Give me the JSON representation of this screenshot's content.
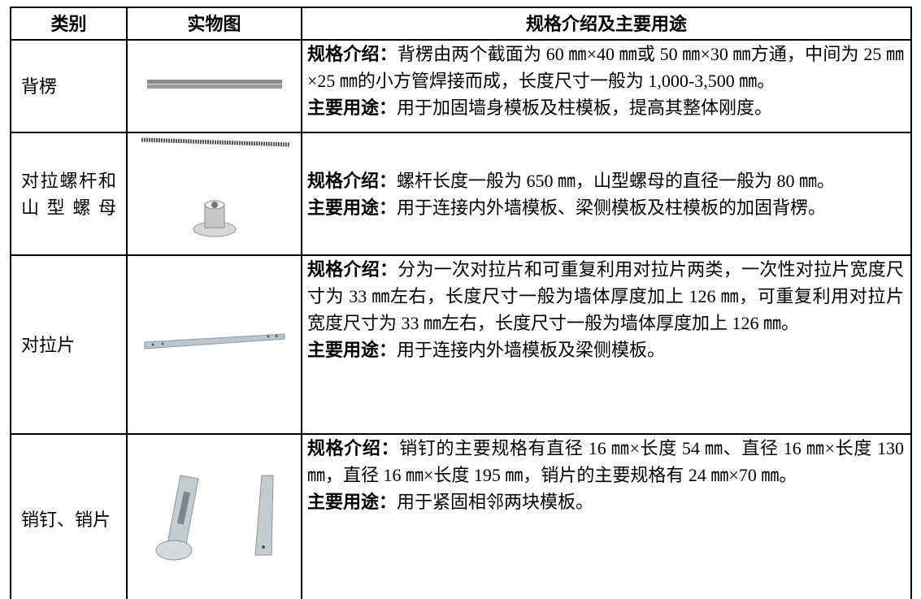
{
  "table": {
    "header": [
      "类别",
      "实物图",
      "规格介绍及主要用途"
    ],
    "rows": [
      {
        "category": "背楞",
        "spec_label": "规格介绍：",
        "spec": "背楞由两个截面为 60 ㎜×40 ㎜或 50 ㎜×30 ㎜方通，中间为 25 ㎜×25 ㎜的小方管焊接而成，长度尺寸一般为 1,000-3,500 ㎜。",
        "use_label": "主要用途：",
        "use": "用于加固墙身模板及柱模板，提高其整体刚度。"
      },
      {
        "category": "对拉螺杆和山型螺母",
        "spec_label": "规格介绍：",
        "spec": "螺杆长度一般为 650 ㎜，山型螺母的直径一般为 80 ㎜。",
        "use_label": "主要用途：",
        "use": "用于连接内外墙模板、梁侧模板及柱模板的加固背楞。"
      },
      {
        "category": "对拉片",
        "spec_label": "规格介绍：",
        "spec": "分为一次对拉片和可重复利用对拉片两类，一次性对拉片宽度尺寸为 33 ㎜左右，长度尺寸一般为墙体厚度加上 126 ㎜，可重复利用对拉片宽度尺寸为 33 ㎜左右，长度尺寸一般为墙体厚度加上 126 ㎜。",
        "use_label": "主要用途：",
        "use": "用于连接内外墙模板及梁侧模板。"
      },
      {
        "category": "销钉、销片",
        "spec_label": "规格介绍：",
        "spec": "销钉的主要规格有直径 16 ㎜×长度 54 ㎜、直径 16 ㎜×长度 130 ㎜，直径 16 ㎜×长度 195 ㎜，销片的主要规格有 24 ㎜×70 ㎜。",
        "use_label": "主要用途：",
        "use": "用于紧固相邻两块模板。"
      }
    ]
  }
}
